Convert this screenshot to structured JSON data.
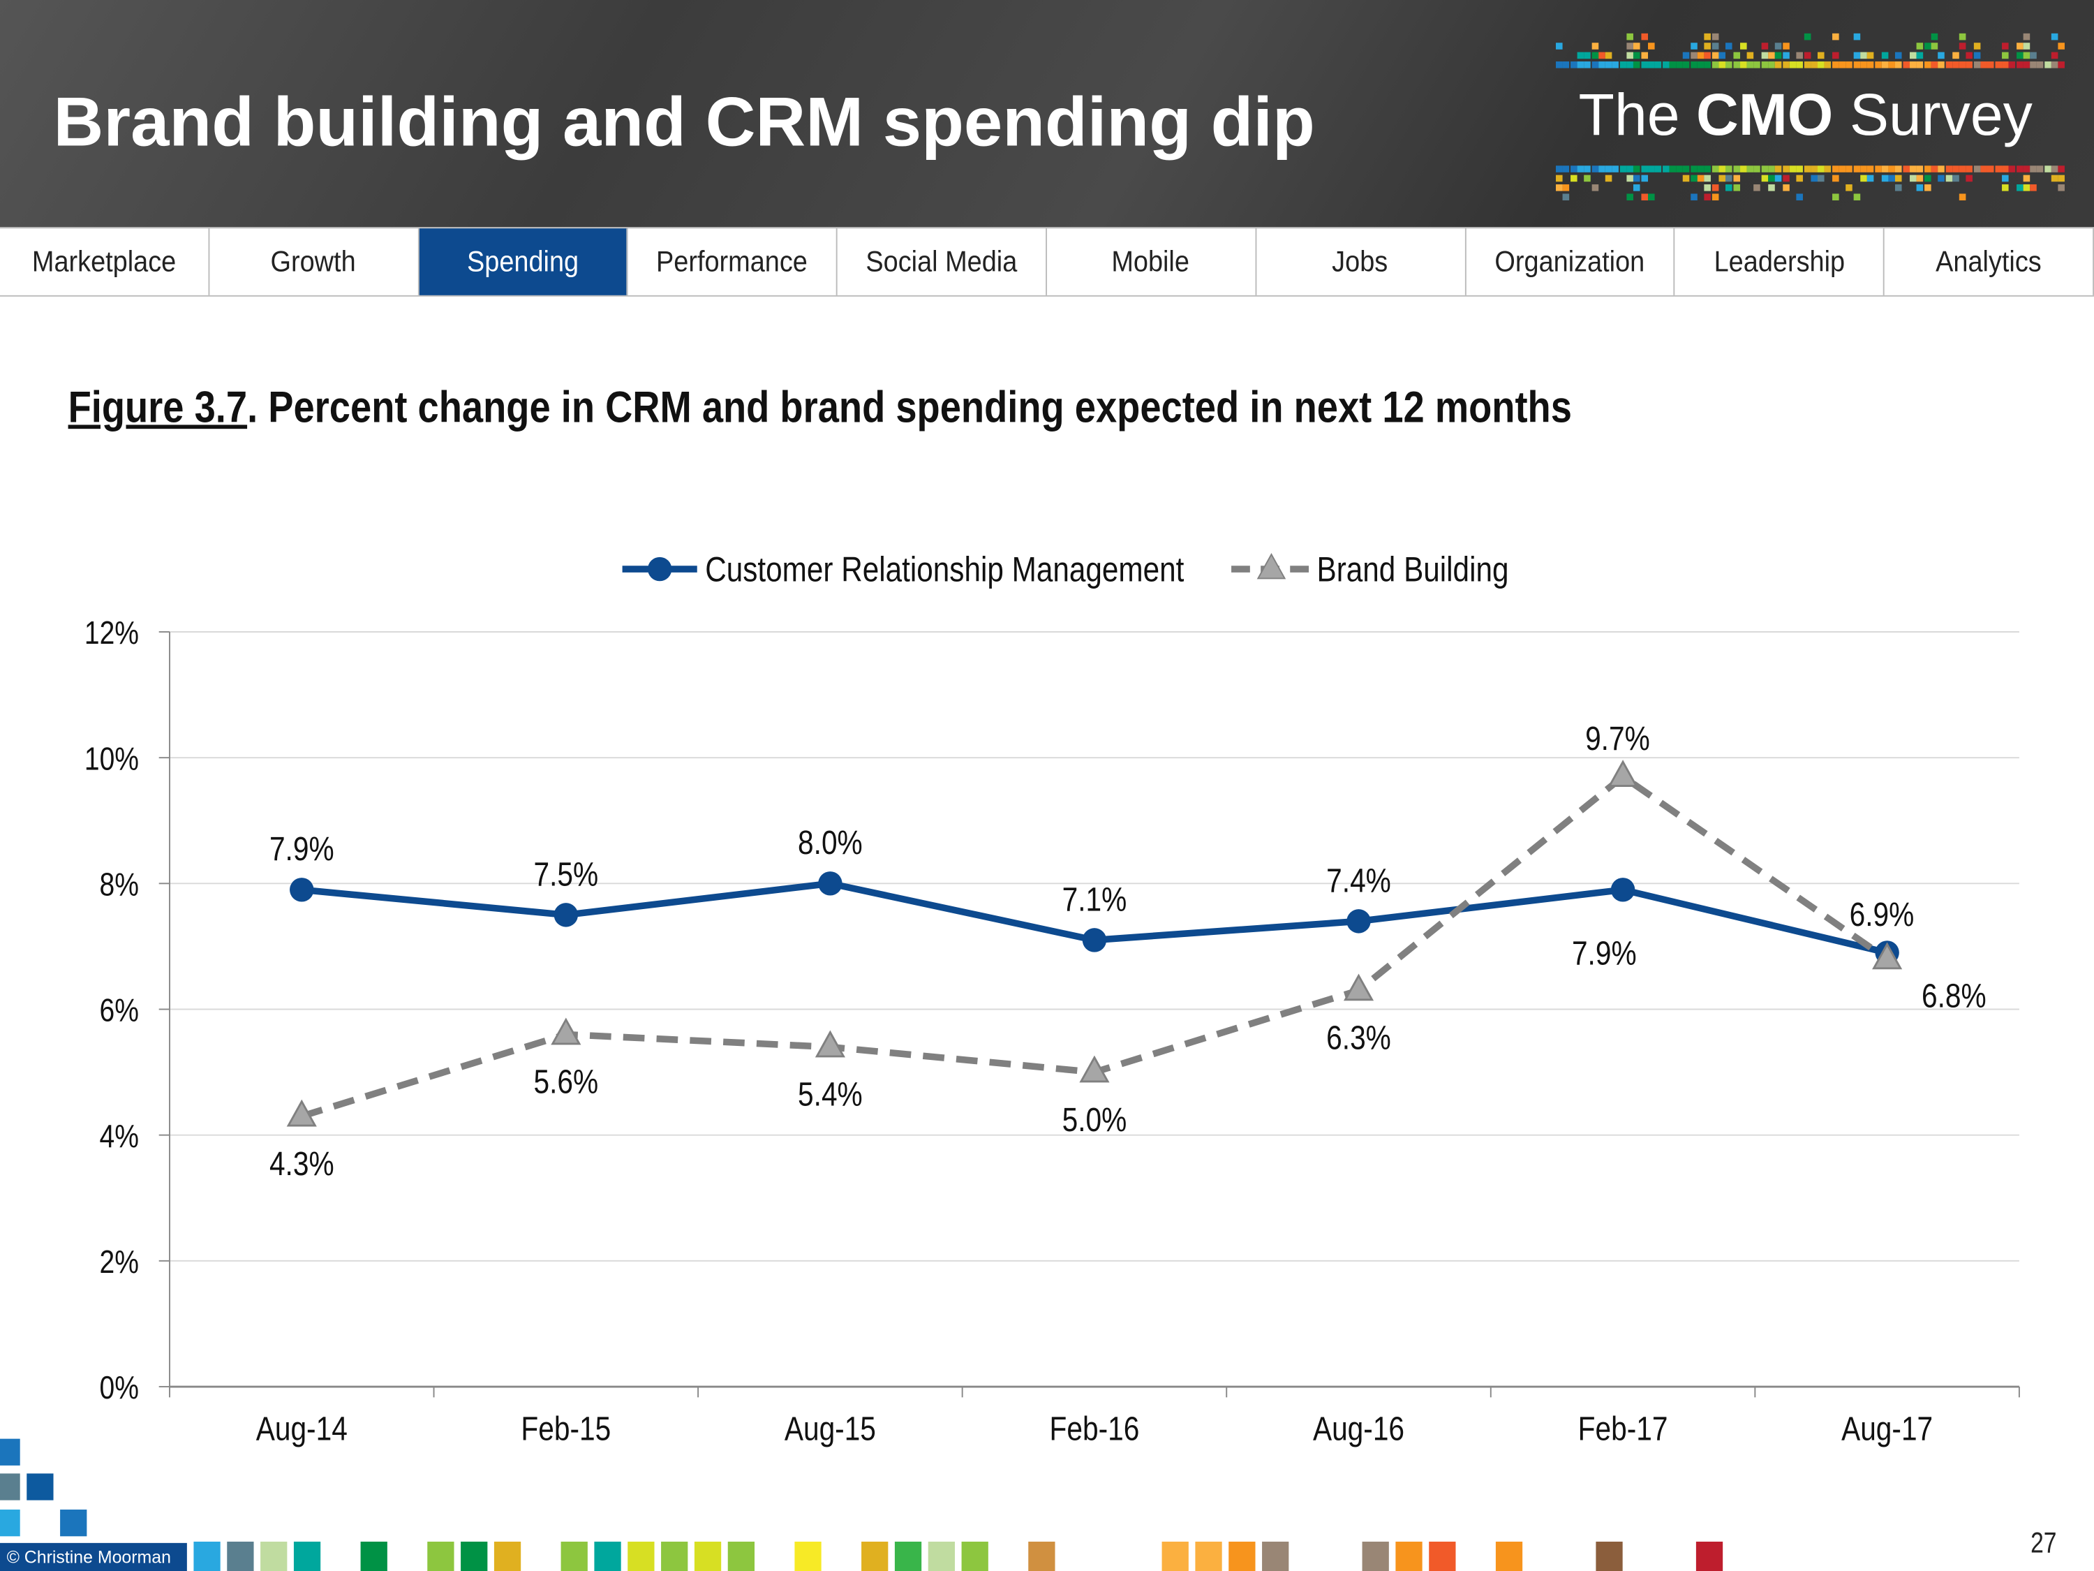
{
  "header": {
    "title": "Brand building and CRM spending dip",
    "logo": {
      "prefix": "The",
      "bold": "CMO",
      "suffix": "Survey"
    }
  },
  "nav": {
    "tabs": [
      {
        "label": "Marketplace",
        "active": false
      },
      {
        "label": "Growth",
        "active": false
      },
      {
        "label": "Spending",
        "active": true
      },
      {
        "label": "Performance",
        "active": false
      },
      {
        "label": "Social Media",
        "active": false
      },
      {
        "label": "Mobile",
        "active": false
      },
      {
        "label": "Jobs",
        "active": false
      },
      {
        "label": "Organization",
        "active": false
      },
      {
        "label": "Leadership",
        "active": false
      },
      {
        "label": "Analytics",
        "active": false
      }
    ],
    "active_color": "#0d4a8f"
  },
  "figure": {
    "number": "Figure 3.7",
    "caption": ".  Percent change in CRM and brand spending expected in next 12 months"
  },
  "chart_data": {
    "type": "line",
    "categories": [
      "Aug-14",
      "Feb-15",
      "Aug-15",
      "Feb-16",
      "Aug-16",
      "Feb-17",
      "Aug-17"
    ],
    "ylim": [
      0,
      12
    ],
    "yticks": [
      "0%",
      "2%",
      "4%",
      "6%",
      "8%",
      "10%",
      "12%"
    ],
    "grid": true,
    "legend_placement": "top",
    "series": [
      {
        "name": "Customer Relationship Management",
        "values": [
          7.9,
          7.5,
          8.0,
          7.1,
          7.4,
          7.9,
          6.9
        ],
        "labels": [
          "7.9%",
          "7.5%",
          "8.0%",
          "7.1%",
          "7.4%",
          "7.9%",
          "6.9%"
        ],
        "color": "#0d4a8f",
        "marker": "circle",
        "style": "solid"
      },
      {
        "name": "Brand Building",
        "values": [
          4.3,
          5.6,
          5.4,
          5.0,
          6.3,
          9.7,
          6.8
        ],
        "labels": [
          "4.3%",
          "5.6%",
          "5.4%",
          "5.0%",
          "6.3%",
          "9.7%",
          "6.8%"
        ],
        "color": "#808080",
        "marker": "triangle",
        "style": "dashed"
      }
    ]
  },
  "footer": {
    "copyright": "© Christine Moorman",
    "page_number": "27"
  }
}
